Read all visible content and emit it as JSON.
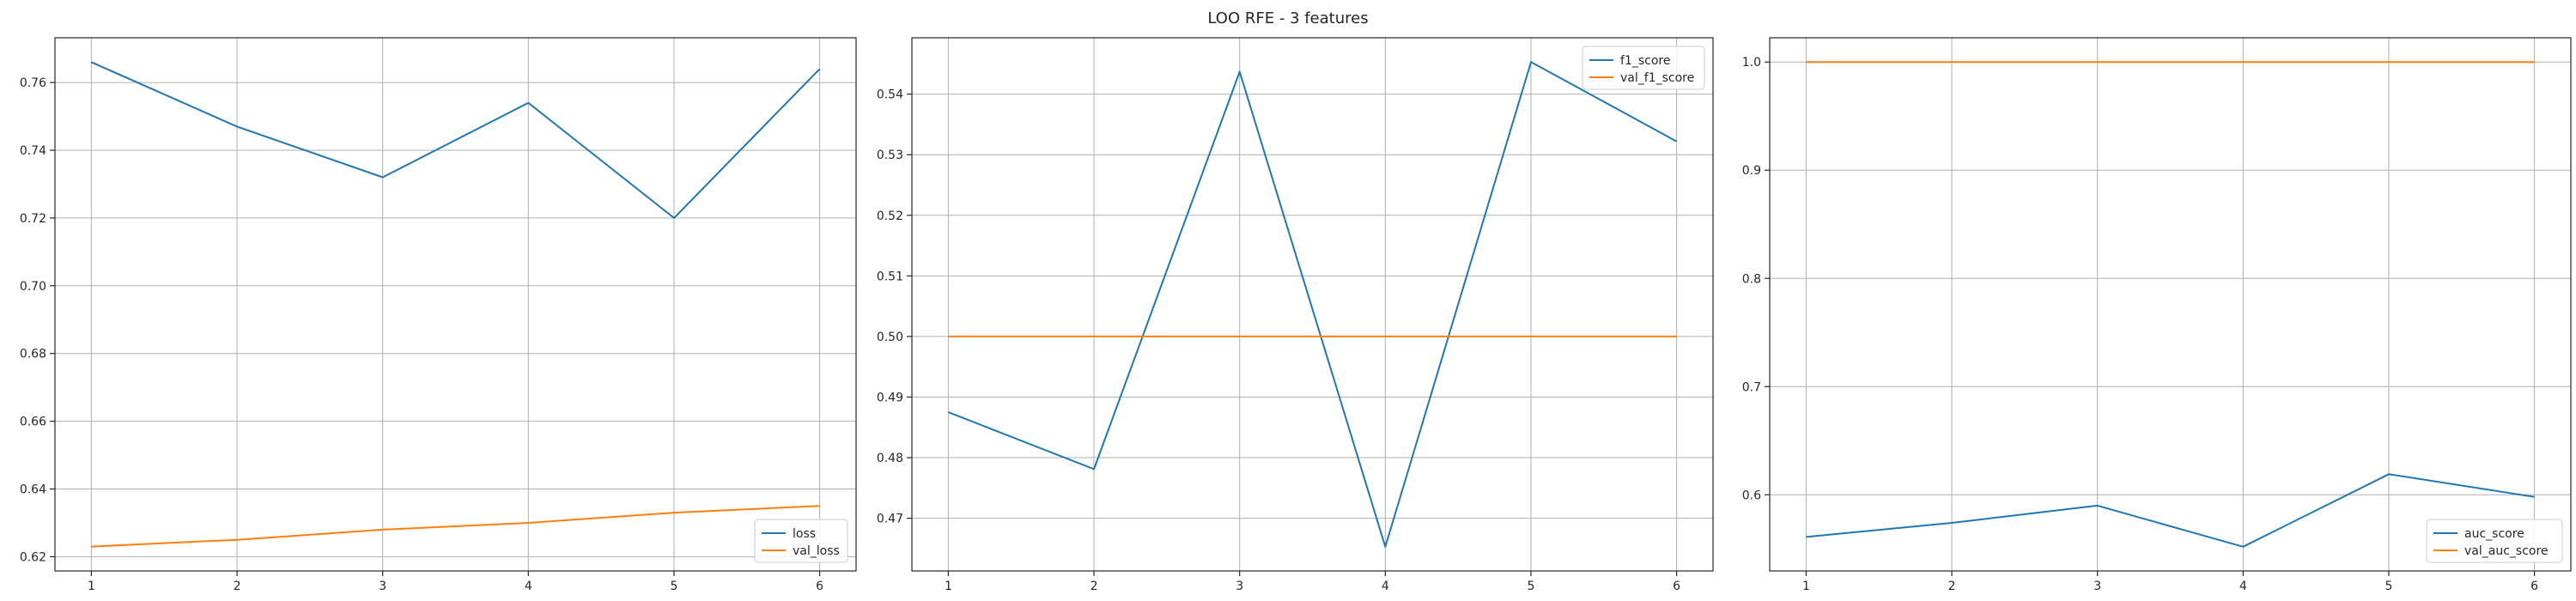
{
  "figure": {
    "title": "LOO RFE - 3 features"
  },
  "colors": {
    "series1": "#1f77b4",
    "series2": "#ff7f0e"
  },
  "chart_data": [
    {
      "type": "line",
      "x": [
        1,
        2,
        3,
        4,
        5,
        6
      ],
      "series": [
        {
          "name": "loss",
          "values": [
            0.766,
            0.747,
            0.732,
            0.754,
            0.72,
            0.764
          ]
        },
        {
          "name": "val_loss",
          "values": [
            0.623,
            0.625,
            0.628,
            0.63,
            0.633,
            0.635
          ]
        }
      ],
      "xticks": [
        1,
        2,
        3,
        4,
        5,
        6
      ],
      "yticks": [
        0.62,
        0.64,
        0.66,
        0.68,
        0.7,
        0.72,
        0.74,
        0.76
      ],
      "ytick_labels": [
        "0.62",
        "0.64",
        "0.66",
        "0.68",
        "0.70",
        "0.72",
        "0.74",
        "0.76"
      ],
      "xlim": [
        0.75,
        6.25
      ],
      "ylim": [
        0.6158,
        0.7732
      ],
      "grid": true,
      "legend": "lower right"
    },
    {
      "type": "line",
      "x": [
        1,
        2,
        3,
        4,
        5,
        6
      ],
      "series": [
        {
          "name": "f1_score",
          "values": [
            0.4875,
            0.4781,
            0.5437,
            0.4653,
            0.5453,
            0.5322
          ]
        },
        {
          "name": "val_f1_score",
          "values": [
            0.5,
            0.5,
            0.5,
            0.5,
            0.5,
            0.5
          ]
        }
      ],
      "xticks": [
        1,
        2,
        3,
        4,
        5,
        6
      ],
      "yticks": [
        0.47,
        0.48,
        0.49,
        0.5,
        0.51,
        0.52,
        0.53,
        0.54
      ],
      "ytick_labels": [
        "0.47",
        "0.48",
        "0.49",
        "0.50",
        "0.51",
        "0.52",
        "0.53",
        "0.54"
      ],
      "xlim": [
        0.75,
        6.25
      ],
      "ylim": [
        0.4613,
        0.5493
      ],
      "grid": true,
      "legend": "upper right"
    },
    {
      "type": "line",
      "x": [
        1,
        2,
        3,
        4,
        5,
        6
      ],
      "series": [
        {
          "name": "auc_score",
          "values": [
            0.561,
            0.574,
            0.59,
            0.552,
            0.619,
            0.598
          ]
        },
        {
          "name": "val_auc_score",
          "values": [
            1.0,
            1.0,
            1.0,
            1.0,
            1.0,
            1.0
          ]
        }
      ],
      "xticks": [
        1,
        2,
        3,
        4,
        5,
        6
      ],
      "yticks": [
        0.6,
        0.7,
        0.8,
        0.9,
        1.0
      ],
      "ytick_labels": [
        "0.6",
        "0.7",
        "0.8",
        "0.9",
        "1.0"
      ],
      "xlim": [
        0.75,
        6.25
      ],
      "ylim": [
        0.5296,
        1.0224
      ],
      "grid": true,
      "legend": "lower right"
    }
  ]
}
